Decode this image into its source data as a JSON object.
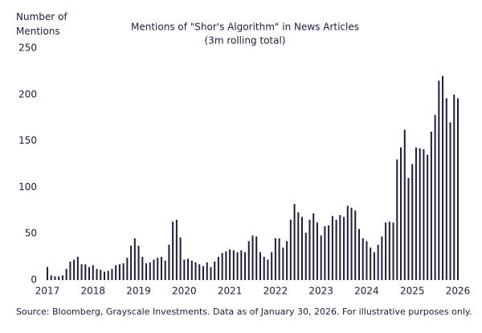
{
  "chart_data": {
    "type": "bar",
    "title": "Mentions of \"Shor's Algorithm\" in News Articles",
    "subtitle": "(3m rolling total)",
    "y_label": "Number of Mentions",
    "source": "Source: Bloomberg, Grayscale Investments. Data as of January 30, 2026. For illustrative purposes only.",
    "color": "#1f1c3d",
    "categories": [
      "2017",
      null,
      null,
      null,
      null,
      null,
      null,
      null,
      null,
      null,
      null,
      null,
      "2018",
      null,
      null,
      null,
      null,
      null,
      null,
      null,
      null,
      null,
      null,
      null,
      "2019",
      null,
      null,
      null,
      null,
      null,
      null,
      null,
      null,
      null,
      null,
      null,
      "2020",
      null,
      null,
      null,
      null,
      null,
      null,
      null,
      null,
      null,
      null,
      null,
      "2021",
      null,
      null,
      null,
      null,
      null,
      null,
      null,
      null,
      null,
      null,
      null,
      "2022",
      null,
      null,
      null,
      null,
      null,
      null,
      null,
      null,
      null,
      null,
      null,
      "2023",
      null,
      null,
      null,
      null,
      null,
      null,
      null,
      null,
      null,
      null,
      null,
      "2024",
      null,
      null,
      null,
      null,
      null,
      null,
      null,
      null,
      null,
      null,
      null,
      "2025",
      null,
      null,
      null,
      null,
      null,
      null,
      null,
      null,
      null,
      null,
      null,
      "2026"
    ],
    "values": [
      14,
      5,
      4,
      4,
      5,
      12,
      20,
      22,
      25,
      17,
      17,
      14,
      16,
      12,
      11,
      9,
      10,
      12,
      16,
      17,
      18,
      24,
      37,
      45,
      37,
      25,
      18,
      19,
      22,
      24,
      25,
      21,
      38,
      63,
      65,
      46,
      22,
      23,
      21,
      19,
      17,
      15,
      19,
      14,
      20,
      25,
      29,
      31,
      33,
      32,
      30,
      32,
      30,
      42,
      48,
      47,
      30,
      25,
      22,
      30,
      45,
      45,
      35,
      42,
      65,
      82,
      73,
      68,
      51,
      65,
      72,
      62,
      48,
      58,
      59,
      69,
      65,
      70,
      68,
      80,
      78,
      75,
      55,
      45,
      42,
      35,
      30,
      38,
      47,
      62,
      63,
      62,
      130,
      143,
      162,
      110,
      125,
      143,
      142,
      141,
      135,
      160,
      178,
      215,
      220,
      196,
      170,
      200,
      196
    ],
    "ylim": [
      0,
      250
    ],
    "yticks": [
      0,
      50,
      100,
      150,
      200,
      250
    ],
    "grid": false
  }
}
